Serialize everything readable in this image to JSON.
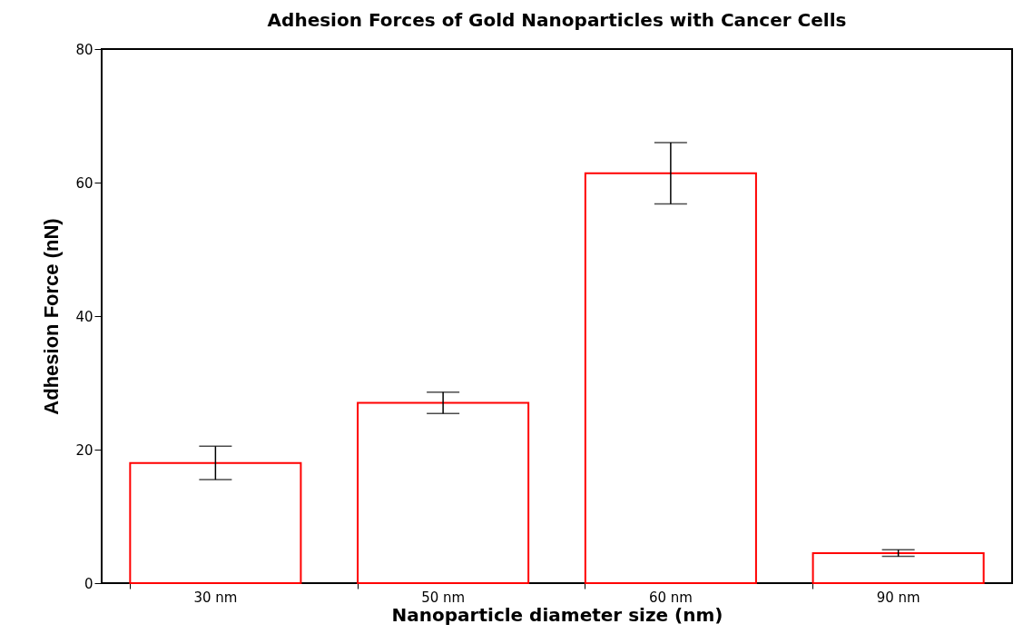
{
  "chart_data": {
    "type": "bar",
    "title": "Adhesion Forces of Gold Nanoparticles with Cancer Cells",
    "xlabel": "Nanoparticle diameter size (nm)",
    "ylabel": "Adhesion Force (nN)",
    "categories": [
      "30 nm",
      "50 nm",
      "60 nm",
      "90 nm"
    ],
    "values": [
      18,
      27,
      61.4,
      4.5
    ],
    "errors": [
      2.5,
      1.6,
      4.6,
      0.5
    ],
    "color": "#ff0000",
    "ylim": [
      0,
      80
    ],
    "yticks": [
      0,
      20,
      40,
      60,
      80
    ],
    "grid": false
  }
}
